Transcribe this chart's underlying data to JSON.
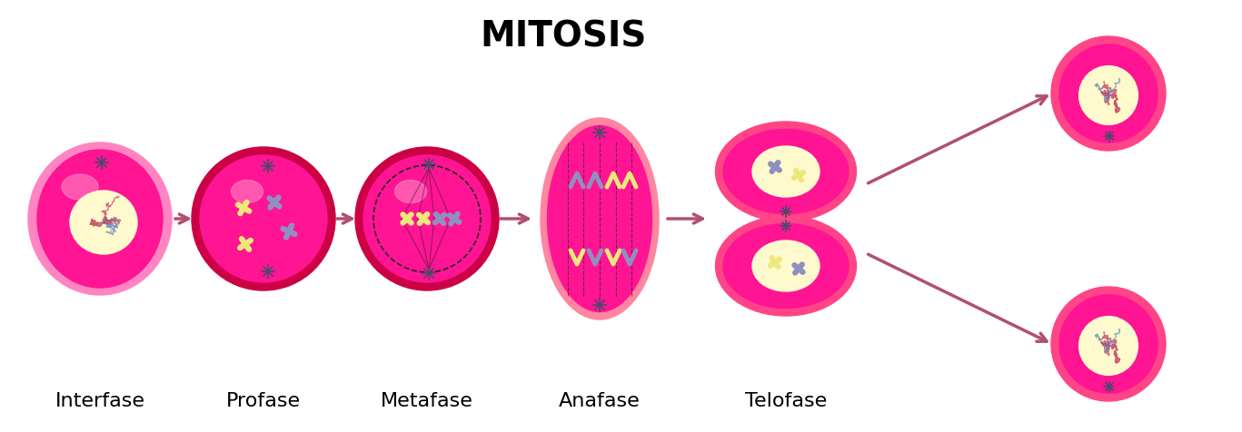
{
  "title": "MITOSIS",
  "title_fontsize": 28,
  "title_fontweight": "bold",
  "labels": [
    "Interfase",
    "Profase",
    "Metafase",
    "Anafase",
    "Telofase"
  ],
  "label_fontsize": 16,
  "bg_color": "#FFFFFF",
  "cell_hot_pink": "#FF1493",
  "cell_border_red": "#CC0044",
  "cell_light_pink": "#FF85C2",
  "cell_telo_pink": "#FF4488",
  "highlight_color": "#FF99CC",
  "nucleus_color": "#FFFACD",
  "arrow_color": "#B05070",
  "centrosome_color": "#4A4A6A",
  "chrom_yellow": "#EDE87A",
  "chrom_purple": "#9090C0",
  "chromatin_red": "#C04060",
  "chromatin_blue": "#7090C0",
  "spindle_color": "#222222",
  "anafase_outer": "#FF85A0"
}
